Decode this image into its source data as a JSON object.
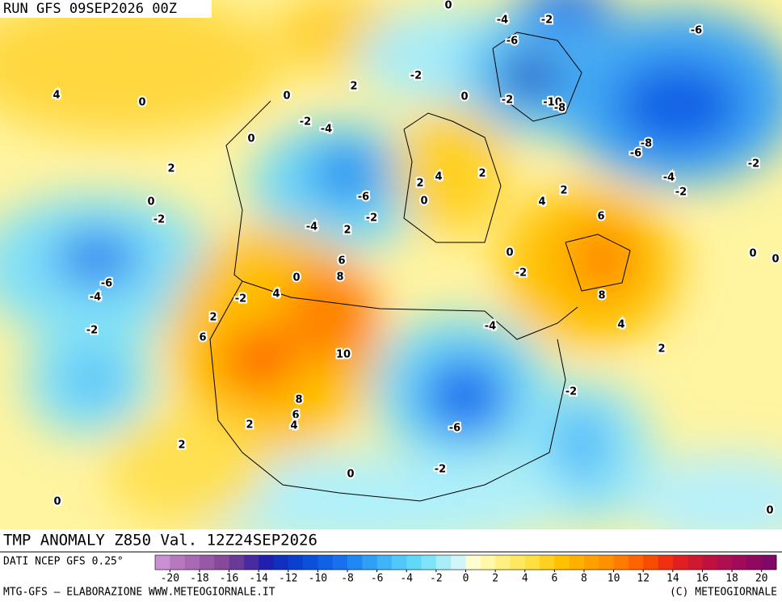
{
  "header": {
    "run": "RUN GFS 09SEP2026 00Z"
  },
  "contour_labels": [
    0,
    -4,
    -2,
    -6,
    -6,
    4,
    0,
    0,
    2,
    -2,
    0,
    -2,
    -10,
    -8,
    -2,
    -4,
    0,
    -8,
    -6,
    2,
    -2,
    4,
    2,
    2,
    -4,
    -2,
    2,
    0,
    -6,
    0,
    4,
    -2,
    -2,
    -4,
    2,
    6,
    0,
    0,
    0,
    6,
    -2,
    0,
    8,
    -6,
    -4,
    4,
    -2,
    8,
    2,
    -2,
    -4,
    4,
    6,
    10,
    2,
    -2,
    8,
    6,
    4,
    2,
    -6,
    2,
    -2,
    0,
    0,
    0
  ],
  "footer": {
    "title": "TMP ANOMALY Z850 Val. 12Z24SEP2026",
    "source": "DATI NCEP GFS 0.25°",
    "credit": "MTG-GFS — ELABORAZIONE WWW.METEOGIORNALE.IT",
    "copyright": "(C) METEOGIORNALE"
  },
  "colorbar": {
    "ticks": [
      -20,
      -18,
      -16,
      -14,
      -12,
      -10,
      -8,
      -6,
      -4,
      -2,
      0,
      2,
      4,
      6,
      8,
      10,
      12,
      14,
      16,
      18,
      20
    ],
    "colors": [
      "#c890d0",
      "#b878c0",
      "#a868b4",
      "#9858a8",
      "#88489c",
      "#6a3a98",
      "#4a2aa0",
      "#2020b0",
      "#1030c0",
      "#0a40d0",
      "#0a50dc",
      "#1060e6",
      "#1870f0",
      "#2088f4",
      "#30a0f6",
      "#40b4f8",
      "#50c8fa",
      "#60d8fa",
      "#80e4f8",
      "#a8eef8",
      "#d0f6fa",
      "#fffcd0",
      "#fff8a8",
      "#fff080",
      "#ffe860",
      "#ffe040",
      "#ffd020",
      "#ffc000",
      "#ffb000",
      "#ffa000",
      "#ff9000",
      "#ff7c00",
      "#ff6400",
      "#f84c00",
      "#f03010",
      "#e02020",
      "#d01830",
      "#c01040",
      "#b00c50",
      "#a00a58",
      "#900860",
      "#800868"
    ]
  }
}
